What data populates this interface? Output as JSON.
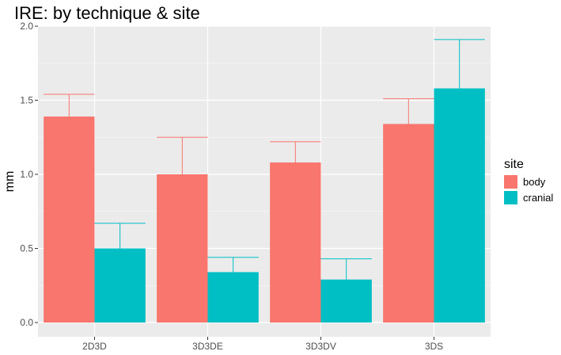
{
  "chart_data": {
    "type": "bar",
    "title": "IRE: by technique & site",
    "xlabel": "",
    "ylabel": "mm",
    "categories": [
      "2D3D",
      "3D3DE",
      "3D3DV",
      "3DS"
    ],
    "ylim": [
      0,
      2.0
    ],
    "yticks": [
      0.0,
      0.5,
      1.0,
      1.5,
      2.0
    ],
    "ytick_labels": [
      "0.0",
      "0.5",
      "1.0",
      "1.5",
      "2.0"
    ],
    "grid": true,
    "legend": {
      "title": "site",
      "position": "right"
    },
    "series": [
      {
        "name": "body",
        "color": "#F8766D",
        "values": [
          1.39,
          1.0,
          1.08,
          1.34
        ],
        "error_upper": [
          1.54,
          1.25,
          1.22,
          1.51
        ]
      },
      {
        "name": "cranial",
        "color": "#00BFC4",
        "values": [
          0.5,
          0.34,
          0.29,
          1.58
        ],
        "error_upper": [
          0.67,
          0.44,
          0.43,
          1.91
        ]
      }
    ]
  }
}
